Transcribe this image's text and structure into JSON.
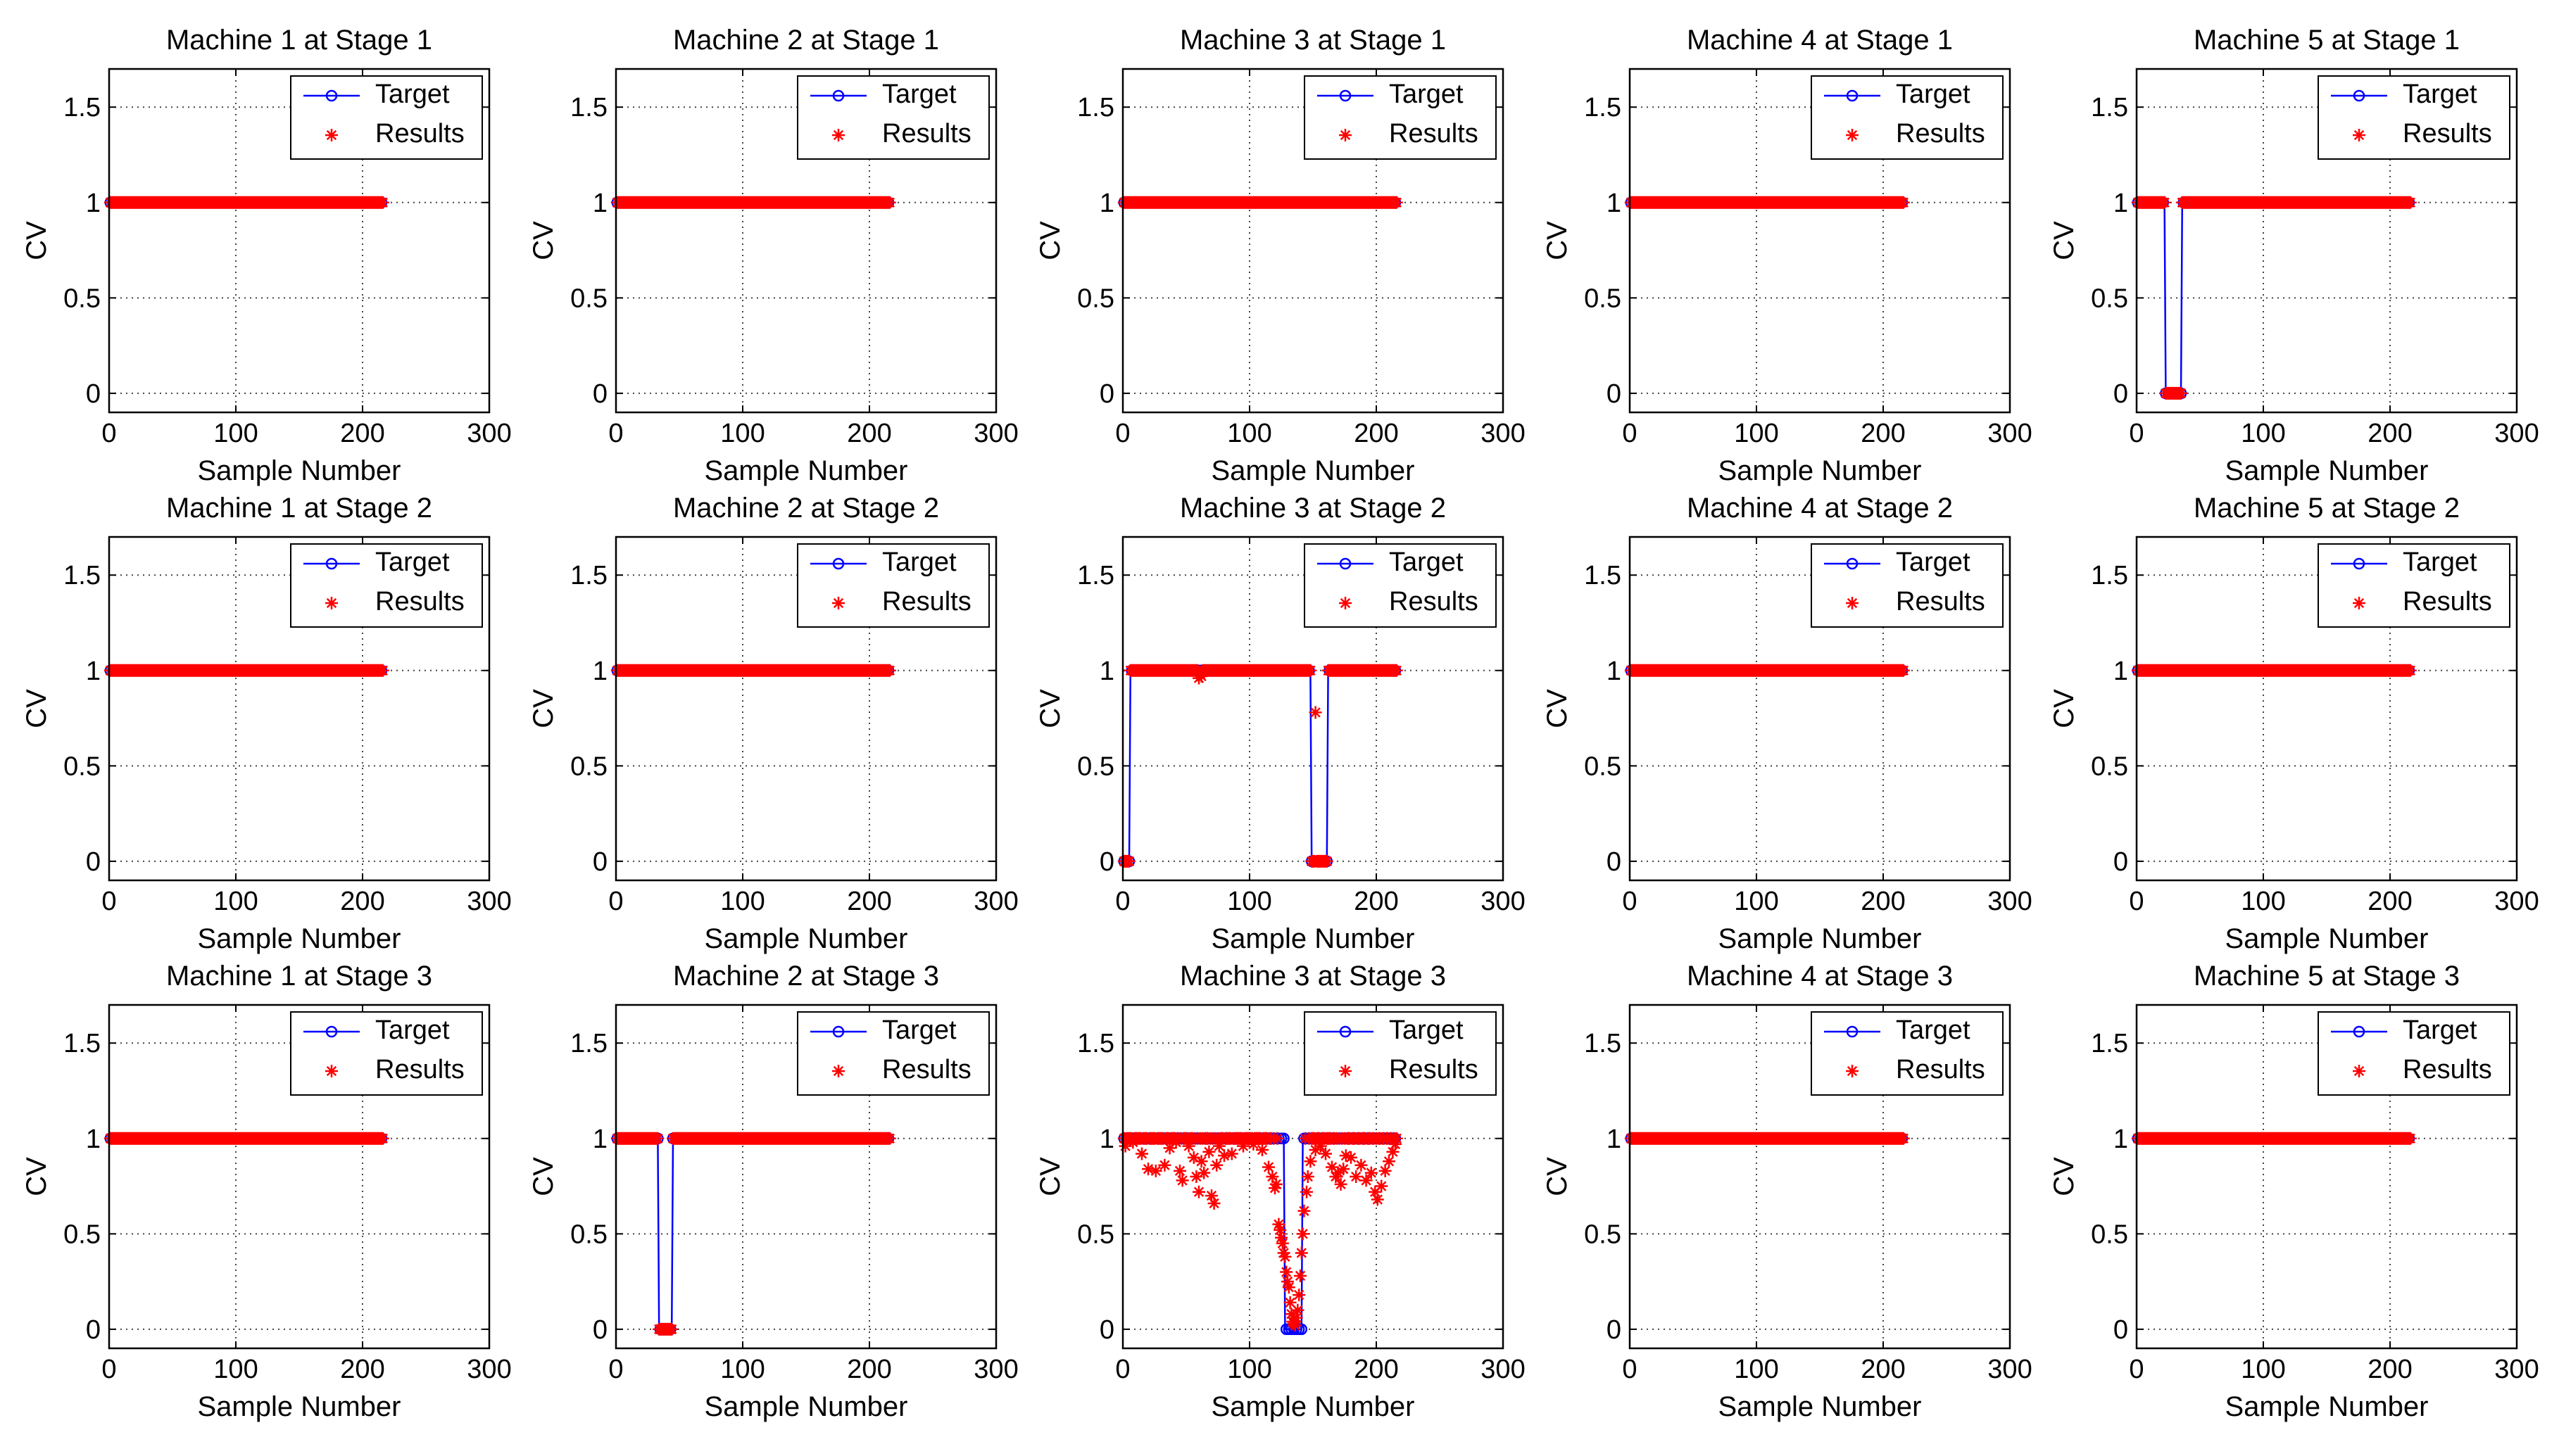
{
  "figure": {
    "background": "#ffffff"
  },
  "colors": {
    "target": "#0000ff",
    "results": "#ff0000",
    "grid": "#444444",
    "axis": "#000000"
  },
  "chart_data": [
    {
      "type": "line",
      "title": "Machine 1 at Stage 1",
      "xlabel": "Sample Number",
      "ylabel": "CV",
      "xlim": [
        0,
        300
      ],
      "ylim": [
        -0.1,
        1.7
      ],
      "xticks": [
        0,
        100,
        200,
        300
      ],
      "yticks": [
        0,
        0.5,
        1,
        1.5
      ],
      "xtick_labels": [
        "0",
        "100",
        "200",
        "300"
      ],
      "ytick_labels": [
        "0",
        "0.5",
        "1",
        "1.5"
      ],
      "grid": true,
      "legend": [
        "Target",
        "Results"
      ],
      "legend_position": "top-right",
      "n_samples": 216,
      "target_zero_ranges": [],
      "result_dips": []
    },
    {
      "type": "line",
      "title": "Machine 2 at Stage 1",
      "xlabel": "Sample Number",
      "ylabel": "CV",
      "xlim": [
        0,
        300
      ],
      "ylim": [
        -0.1,
        1.7
      ],
      "xticks": [
        0,
        100,
        200,
        300
      ],
      "yticks": [
        0,
        0.5,
        1,
        1.5
      ],
      "xtick_labels": [
        "0",
        "100",
        "200",
        "300"
      ],
      "ytick_labels": [
        "0",
        "0.5",
        "1",
        "1.5"
      ],
      "grid": true,
      "legend": [
        "Target",
        "Results"
      ],
      "legend_position": "top-right",
      "n_samples": 216,
      "target_zero_ranges": [],
      "result_dips": []
    },
    {
      "type": "line",
      "title": "Machine 3 at Stage 1",
      "xlabel": "Sample Number",
      "ylabel": "CV",
      "xlim": [
        0,
        300
      ],
      "ylim": [
        -0.1,
        1.7
      ],
      "xticks": [
        0,
        100,
        200,
        300
      ],
      "yticks": [
        0,
        0.5,
        1,
        1.5
      ],
      "xtick_labels": [
        "0",
        "100",
        "200",
        "300"
      ],
      "ytick_labels": [
        "0",
        "0.5",
        "1",
        "1.5"
      ],
      "grid": true,
      "legend": [
        "Target",
        "Results"
      ],
      "legend_position": "top-right",
      "n_samples": 216,
      "target_zero_ranges": [],
      "result_dips": []
    },
    {
      "type": "line",
      "title": "Machine 4 at Stage 1",
      "xlabel": "Sample Number",
      "ylabel": "CV",
      "xlim": [
        0,
        300
      ],
      "ylim": [
        -0.1,
        1.7
      ],
      "xticks": [
        0,
        100,
        200,
        300
      ],
      "yticks": [
        0,
        0.5,
        1,
        1.5
      ],
      "xtick_labels": [
        "0",
        "100",
        "200",
        "300"
      ],
      "ytick_labels": [
        "0",
        "0.5",
        "1",
        "1.5"
      ],
      "grid": true,
      "legend": [
        "Target",
        "Results"
      ],
      "legend_position": "top-right",
      "n_samples": 216,
      "target_zero_ranges": [],
      "result_dips": []
    },
    {
      "type": "line",
      "title": "Machine 5 at Stage 1",
      "xlabel": "Sample Number",
      "ylabel": "CV",
      "xlim": [
        0,
        300
      ],
      "ylim": [
        -0.1,
        1.7
      ],
      "xticks": [
        0,
        100,
        200,
        300
      ],
      "yticks": [
        0,
        0.5,
        1,
        1.5
      ],
      "xtick_labels": [
        "0",
        "100",
        "200",
        "300"
      ],
      "ytick_labels": [
        "0",
        "0.5",
        "1",
        "1.5"
      ],
      "grid": true,
      "legend": [
        "Target",
        "Results"
      ],
      "legend_position": "top-right",
      "n_samples": 216,
      "target_zero_ranges": [
        [
          23,
          35
        ]
      ],
      "result_dips": []
    },
    {
      "type": "line",
      "title": "Machine 1 at Stage 2",
      "xlabel": "Sample Number",
      "ylabel": "CV",
      "xlim": [
        0,
        300
      ],
      "ylim": [
        -0.1,
        1.7
      ],
      "xticks": [
        0,
        100,
        200,
        300
      ],
      "yticks": [
        0,
        0.5,
        1,
        1.5
      ],
      "xtick_labels": [
        "0",
        "100",
        "200",
        "300"
      ],
      "ytick_labels": [
        "0",
        "0.5",
        "1",
        "1.5"
      ],
      "grid": true,
      "legend": [
        "Target",
        "Results"
      ],
      "legend_position": "top-right",
      "n_samples": 216,
      "target_zero_ranges": [],
      "result_dips": []
    },
    {
      "type": "line",
      "title": "Machine 2 at Stage 2",
      "xlabel": "Sample Number",
      "ylabel": "CV",
      "xlim": [
        0,
        300
      ],
      "ylim": [
        -0.1,
        1.7
      ],
      "xticks": [
        0,
        100,
        200,
        300
      ],
      "yticks": [
        0,
        0.5,
        1,
        1.5
      ],
      "xtick_labels": [
        "0",
        "100",
        "200",
        "300"
      ],
      "ytick_labels": [
        "0",
        "0.5",
        "1",
        "1.5"
      ],
      "grid": true,
      "legend": [
        "Target",
        "Results"
      ],
      "legend_position": "top-right",
      "n_samples": 216,
      "target_zero_ranges": [],
      "result_dips": []
    },
    {
      "type": "line",
      "title": "Machine 3 at Stage 2",
      "xlabel": "Sample Number",
      "ylabel": "CV",
      "xlim": [
        0,
        300
      ],
      "ylim": [
        -0.1,
        1.7
      ],
      "xticks": [
        0,
        100,
        200,
        300
      ],
      "yticks": [
        0,
        0.5,
        1,
        1.5
      ],
      "xtick_labels": [
        "0",
        "100",
        "200",
        "300"
      ],
      "ytick_labels": [
        "0",
        "0.5",
        "1",
        "1.5"
      ],
      "grid": true,
      "legend": [
        "Target",
        "Results"
      ],
      "legend_position": "top-right",
      "n_samples": 216,
      "target_zero_ranges": [
        [
          0,
          5
        ],
        [
          149,
          161
        ]
      ],
      "result_dips": [
        [
          60,
          0.96
        ],
        [
          61,
          0.98
        ],
        [
          62,
          0.97
        ],
        [
          152,
          0.78
        ]
      ]
    },
    {
      "type": "line",
      "title": "Machine 4 at Stage 2",
      "xlabel": "Sample Number",
      "ylabel": "CV",
      "xlim": [
        0,
        300
      ],
      "ylim": [
        -0.1,
        1.7
      ],
      "xticks": [
        0,
        100,
        200,
        300
      ],
      "yticks": [
        0,
        0.5,
        1,
        1.5
      ],
      "xtick_labels": [
        "0",
        "100",
        "200",
        "300"
      ],
      "ytick_labels": [
        "0",
        "0.5",
        "1",
        "1.5"
      ],
      "grid": true,
      "legend": [
        "Target",
        "Results"
      ],
      "legend_position": "top-right",
      "n_samples": 216,
      "target_zero_ranges": [],
      "result_dips": []
    },
    {
      "type": "line",
      "title": "Machine 5 at Stage 2",
      "xlabel": "Sample Number",
      "ylabel": "CV",
      "xlim": [
        0,
        300
      ],
      "ylim": [
        -0.1,
        1.7
      ],
      "xticks": [
        0,
        100,
        200,
        300
      ],
      "yticks": [
        0,
        0.5,
        1,
        1.5
      ],
      "xtick_labels": [
        "0",
        "100",
        "200",
        "300"
      ],
      "ytick_labels": [
        "0",
        "0.5",
        "1",
        "1.5"
      ],
      "grid": true,
      "legend": [
        "Target",
        "Results"
      ],
      "legend_position": "top-right",
      "n_samples": 216,
      "target_zero_ranges": [],
      "result_dips": []
    },
    {
      "type": "line",
      "title": "Machine 1 at Stage 3",
      "xlabel": "Sample Number",
      "ylabel": "CV",
      "xlim": [
        0,
        300
      ],
      "ylim": [
        -0.1,
        1.7
      ],
      "xticks": [
        0,
        100,
        200,
        300
      ],
      "yticks": [
        0,
        0.5,
        1,
        1.5
      ],
      "xtick_labels": [
        "0",
        "100",
        "200",
        "300"
      ],
      "ytick_labels": [
        "0",
        "0.5",
        "1",
        "1.5"
      ],
      "grid": true,
      "legend": [
        "Target",
        "Results"
      ],
      "legend_position": "top-right",
      "n_samples": 216,
      "target_zero_ranges": [],
      "result_dips": []
    },
    {
      "type": "line",
      "title": "Machine 2 at Stage 3",
      "xlabel": "Sample Number",
      "ylabel": "CV",
      "xlim": [
        0,
        300
      ],
      "ylim": [
        -0.1,
        1.7
      ],
      "xticks": [
        0,
        100,
        200,
        300
      ],
      "yticks": [
        0,
        0.5,
        1,
        1.5
      ],
      "xtick_labels": [
        "0",
        "100",
        "200",
        "300"
      ],
      "ytick_labels": [
        "0",
        "0.5",
        "1",
        "1.5"
      ],
      "grid": true,
      "legend": [
        "Target",
        "Results"
      ],
      "legend_position": "top-right",
      "n_samples": 216,
      "target_zero_ranges": [
        [
          34,
          44
        ]
      ],
      "result_dips": []
    },
    {
      "type": "line",
      "title": "Machine 3 at Stage 3",
      "xlabel": "Sample Number",
      "ylabel": "CV",
      "xlim": [
        0,
        300
      ],
      "ylim": [
        -0.1,
        1.7
      ],
      "xticks": [
        0,
        100,
        200,
        300
      ],
      "yticks": [
        0,
        0.5,
        1,
        1.5
      ],
      "xtick_labels": [
        "0",
        "100",
        "200",
        "300"
      ],
      "ytick_labels": [
        "0",
        "0.5",
        "1",
        "1.5"
      ],
      "grid": true,
      "legend": [
        "Target",
        "Results"
      ],
      "legend_position": "top-right",
      "n_samples": 216,
      "target_zero_ranges": [
        [
          128,
          141
        ]
      ],
      "result_dips": [
        [
          2,
          0.96
        ],
        [
          8,
          0.98
        ],
        [
          15,
          0.92
        ],
        [
          20,
          0.84
        ],
        [
          26,
          0.83
        ],
        [
          33,
          0.86
        ],
        [
          37,
          0.95
        ],
        [
          42,
          0.98
        ],
        [
          45,
          0.83
        ],
        [
          47,
          0.78
        ],
        [
          52,
          0.96
        ],
        [
          56,
          0.9
        ],
        [
          58,
          0.8
        ],
        [
          60,
          0.72
        ],
        [
          62,
          0.88
        ],
        [
          64,
          0.82
        ],
        [
          68,
          0.93
        ],
        [
          70,
          0.7
        ],
        [
          72,
          0.66
        ],
        [
          74,
          0.86
        ],
        [
          76,
          0.96
        ],
        [
          80,
          0.91
        ],
        [
          86,
          0.92
        ],
        [
          95,
          0.96
        ],
        [
          103,
          0.97
        ],
        [
          110,
          0.94
        ],
        [
          115,
          0.85
        ],
        [
          118,
          0.8
        ],
        [
          120,
          0.74
        ],
        [
          121,
          0.76
        ],
        [
          123,
          0.55
        ],
        [
          124,
          0.52
        ],
        [
          125,
          0.48
        ],
        [
          126,
          0.45
        ],
        [
          127,
          0.4
        ],
        [
          128,
          0.38
        ],
        [
          129,
          0.3
        ],
        [
          130,
          0.25
        ],
        [
          131,
          0.22
        ],
        [
          132,
          0.14
        ],
        [
          133,
          0.08
        ],
        [
          134,
          0.04
        ],
        [
          135,
          0.03
        ],
        [
          136,
          0.02
        ],
        [
          137,
          0.06
        ],
        [
          138,
          0.1
        ],
        [
          139,
          0.18
        ],
        [
          140,
          0.28
        ],
        [
          141,
          0.4
        ],
        [
          142,
          0.5
        ],
        [
          143,
          0.62
        ],
        [
          145,
          0.72
        ],
        [
          146,
          0.8
        ],
        [
          148,
          0.88
        ],
        [
          152,
          0.94
        ],
        [
          156,
          0.96
        ],
        [
          160,
          0.92
        ],
        [
          165,
          0.85
        ],
        [
          168,
          0.8
        ],
        [
          170,
          0.82
        ],
        [
          172,
          0.76
        ],
        [
          174,
          0.84
        ],
        [
          176,
          0.91
        ],
        [
          180,
          0.9
        ],
        [
          184,
          0.8
        ],
        [
          188,
          0.86
        ],
        [
          192,
          0.78
        ],
        [
          196,
          0.82
        ],
        [
          199,
          0.72
        ],
        [
          201,
          0.68
        ],
        [
          204,
          0.75
        ],
        [
          207,
          0.83
        ],
        [
          210,
          0.88
        ],
        [
          213,
          0.93
        ],
        [
          215,
          0.97
        ]
      ]
    },
    {
      "type": "line",
      "title": "Machine 4 at Stage 3",
      "xlabel": "Sample Number",
      "ylabel": "CV",
      "xlim": [
        0,
        300
      ],
      "ylim": [
        -0.1,
        1.7
      ],
      "xticks": [
        0,
        100,
        200,
        300
      ],
      "yticks": [
        0,
        0.5,
        1,
        1.5
      ],
      "xtick_labels": [
        "0",
        "100",
        "200",
        "300"
      ],
      "ytick_labels": [
        "0",
        "0.5",
        "1",
        "1.5"
      ],
      "grid": true,
      "legend": [
        "Target",
        "Results"
      ],
      "legend_position": "top-right",
      "n_samples": 216,
      "target_zero_ranges": [],
      "result_dips": []
    },
    {
      "type": "line",
      "title": "Machine 5 at Stage 3",
      "xlabel": "Sample Number",
      "ylabel": "CV",
      "xlim": [
        0,
        300
      ],
      "ylim": [
        -0.1,
        1.7
      ],
      "xticks": [
        0,
        100,
        200,
        300
      ],
      "yticks": [
        0,
        0.5,
        1,
        1.5
      ],
      "xtick_labels": [
        "0",
        "100",
        "200",
        "300"
      ],
      "ytick_labels": [
        "0",
        "0.5",
        "1",
        "1.5"
      ],
      "grid": true,
      "legend": [
        "Target",
        "Results"
      ],
      "legend_position": "top-right",
      "n_samples": 216,
      "target_zero_ranges": [],
      "result_dips": []
    }
  ]
}
